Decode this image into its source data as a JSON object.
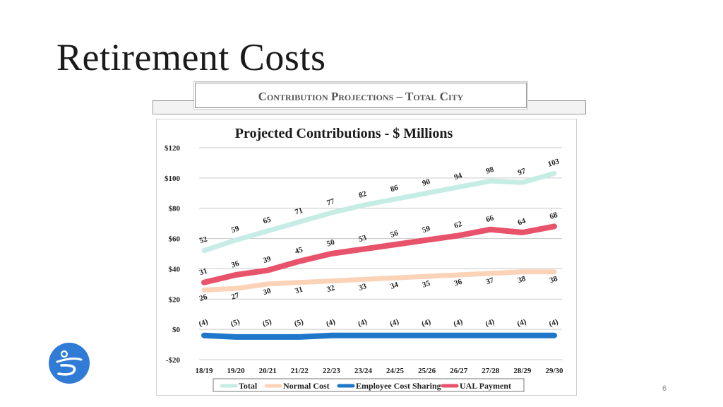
{
  "slide": {
    "title": "Retirement Costs",
    "page_number": "6"
  },
  "banner": {
    "text": "Contribution Projections – Total City"
  },
  "chart_data": {
    "type": "line",
    "title": "Projected Contributions - $ Millions",
    "categories": [
      "18/19",
      "19/20",
      "20/21",
      "21/22",
      "22/23",
      "23/24",
      "24/25",
      "25/26",
      "26/27",
      "27/28",
      "28/29",
      "29/30"
    ],
    "ylim": [
      -20,
      120
    ],
    "yticks": [
      -20,
      0,
      20,
      40,
      60,
      80,
      100,
      120
    ],
    "ytick_labels": [
      "-$20",
      "$0",
      "$20",
      "$40",
      "$60",
      "$80",
      "$100",
      "$120"
    ],
    "grid": true,
    "legend_position": "bottom",
    "series": [
      {
        "name": "Total",
        "color": "#c6ece6",
        "values": [
          52,
          59,
          65,
          71,
          77,
          82,
          86,
          90,
          94,
          98,
          97,
          103
        ],
        "labels": [
          "52",
          "59",
          "65",
          "71",
          "77",
          "82",
          "86",
          "90",
          "94",
          "98",
          "97",
          "103"
        ]
      },
      {
        "name": "Normal Cost",
        "color": "#fbd3b9",
        "values": [
          26,
          27,
          30,
          31,
          32,
          33,
          34,
          35,
          36,
          37,
          38,
          38
        ],
        "labels": [
          "26",
          "27",
          "30",
          "31",
          "32",
          "33",
          "34",
          "35",
          "36",
          "37",
          "38",
          "38"
        ]
      },
      {
        "name": "Employee Cost Sharing",
        "color": "#1f77c9",
        "values": [
          -4,
          -5,
          -5,
          -5,
          -4,
          -4,
          -4,
          -4,
          -4,
          -4,
          -4,
          -4
        ],
        "labels": [
          "(4)",
          "(5)",
          "(5)",
          "(5)",
          "(4)",
          "(4)",
          "(4)",
          "(4)",
          "(4)",
          "(4)",
          "(4)",
          "(4)"
        ]
      },
      {
        "name": "UAL Payment",
        "color": "#e8526a",
        "values": [
          31,
          36,
          39,
          45,
          50,
          53,
          56,
          59,
          62,
          66,
          64,
          68
        ],
        "labels": [
          "31",
          "36",
          "39",
          "45",
          "50",
          "53",
          "56",
          "59",
          "62",
          "66",
          "64",
          "68"
        ]
      }
    ]
  },
  "logo": {
    "icon": "city-logo-icon",
    "color": "#2f7bd6"
  }
}
